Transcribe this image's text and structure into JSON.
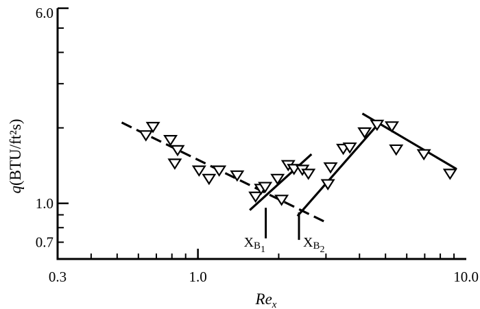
{
  "chart_data": {
    "type": "scatter",
    "title": "",
    "xlabel": "Re",
    "xlabel_sub": "x",
    "ylabel_prefix": "q",
    "ylabel_units": "(BTU/ft²s)",
    "x_scale": "log",
    "y_scale": "log",
    "xlim": [
      0.3,
      10.0
    ],
    "ylim": [
      0.6,
      6.0
    ],
    "x_tick_labels": [
      {
        "value": 0.3,
        "label": "0.3"
      },
      {
        "value": 1.0,
        "label": "1.0"
      },
      {
        "value": 10.0,
        "label": "10.0"
      }
    ],
    "y_tick_labels": [
      {
        "value": 6.0,
        "label": "6.0"
      },
      {
        "value": 1.0,
        "label": "1.0"
      },
      {
        "value": 0.7,
        "label": "0.7"
      }
    ],
    "grid": false,
    "marker": "down-triangle",
    "points": [
      {
        "x": 0.64,
        "y": 1.88
      },
      {
        "x": 0.68,
        "y": 2.03
      },
      {
        "x": 0.79,
        "y": 1.8
      },
      {
        "x": 0.84,
        "y": 1.64
      },
      {
        "x": 0.82,
        "y": 1.45
      },
      {
        "x": 1.01,
        "y": 1.36
      },
      {
        "x": 1.1,
        "y": 1.26
      },
      {
        "x": 1.2,
        "y": 1.36
      },
      {
        "x": 1.4,
        "y": 1.3
      },
      {
        "x": 1.64,
        "y": 1.07
      },
      {
        "x": 1.72,
        "y": 1.15
      },
      {
        "x": 1.78,
        "y": 1.17
      },
      {
        "x": 1.98,
        "y": 1.26
      },
      {
        "x": 2.17,
        "y": 1.43
      },
      {
        "x": 2.28,
        "y": 1.38
      },
      {
        "x": 2.45,
        "y": 1.37
      },
      {
        "x": 2.58,
        "y": 1.32
      },
      {
        "x": 2.05,
        "y": 1.04
      },
      {
        "x": 3.05,
        "y": 1.2
      },
      {
        "x": 3.12,
        "y": 1.4
      },
      {
        "x": 3.48,
        "y": 1.66
      },
      {
        "x": 3.68,
        "y": 1.68
      },
      {
        "x": 4.18,
        "y": 1.93
      },
      {
        "x": 4.65,
        "y": 2.07
      },
      {
        "x": 5.28,
        "y": 2.04
      },
      {
        "x": 5.48,
        "y": 1.65
      },
      {
        "x": 6.95,
        "y": 1.58
      },
      {
        "x": 8.7,
        "y": 1.32
      }
    ],
    "lines": [
      {
        "style": "dashed",
        "from": {
          "x": 0.52,
          "y": 2.1
        },
        "to": {
          "x": 3.0,
          "y": 0.84
        }
      },
      {
        "style": "solid",
        "from": {
          "x": 1.56,
          "y": 0.94
        },
        "to": {
          "x": 2.65,
          "y": 1.57
        }
      },
      {
        "style": "solid",
        "from": {
          "x": 2.35,
          "y": 0.89
        },
        "to": {
          "x": 4.6,
          "y": 2.02
        }
      },
      {
        "style": "solid",
        "from": {
          "x": 4.1,
          "y": 2.28
        },
        "to": {
          "x": 9.2,
          "y": 1.37
        }
      }
    ],
    "annotations": [
      {
        "base": "X",
        "sub": "B",
        "subsub": "1",
        "x": 1.79,
        "y_top": 0.96,
        "y_bottom": 0.725
      },
      {
        "base": "X",
        "sub": "B",
        "subsub": "2",
        "x": 2.38,
        "y_top": 0.92,
        "y_bottom": 0.715
      }
    ]
  }
}
